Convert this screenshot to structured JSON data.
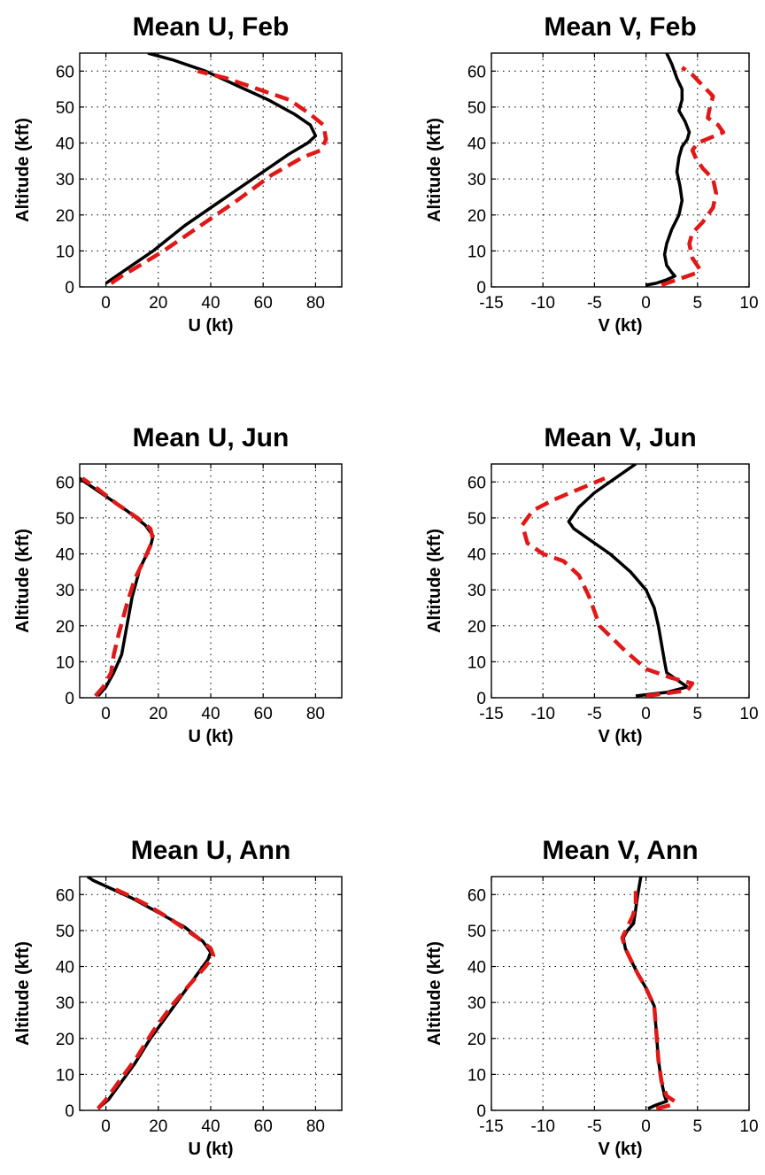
{
  "colors": {
    "series_solid": "#000000",
    "series_dashed": "#e01818",
    "background": "#ffffff"
  },
  "chart_data": [
    {
      "type": "line",
      "title": "Mean U, Feb",
      "xlabel": "U (kt)",
      "ylabel": "Altitude (kft)",
      "xlim": [
        -10,
        90
      ],
      "ylim": [
        0,
        65
      ],
      "xticks": [
        0,
        20,
        40,
        60,
        80
      ],
      "yticks": [
        0,
        10,
        20,
        30,
        40,
        50,
        60
      ],
      "grid": true,
      "series": [
        {
          "style": "solid",
          "color": "#000000",
          "points": [
            [
              0,
              1
            ],
            [
              4,
              3
            ],
            [
              10,
              6
            ],
            [
              18,
              10
            ],
            [
              30,
              17
            ],
            [
              44,
              24
            ],
            [
              58,
              31
            ],
            [
              70,
              37
            ],
            [
              77,
              40
            ],
            [
              80,
              42
            ],
            [
              78,
              45
            ],
            [
              72,
              48
            ],
            [
              62,
              52
            ],
            [
              50,
              56
            ],
            [
              38,
              60
            ],
            [
              26,
              63
            ],
            [
              16,
              65
            ]
          ]
        },
        {
          "style": "dashed",
          "color": "#e01818",
          "points": [
            [
              2,
              1
            ],
            [
              6,
              3
            ],
            [
              13,
              6
            ],
            [
              22,
              10
            ],
            [
              36,
              17
            ],
            [
              50,
              24
            ],
            [
              63,
              31
            ],
            [
              75,
              36
            ],
            [
              82,
              38
            ],
            [
              84,
              41
            ],
            [
              83,
              45
            ],
            [
              78,
              48
            ],
            [
              70,
              52
            ],
            [
              58,
              55
            ],
            [
              46,
              58
            ],
            [
              35,
              60
            ]
          ]
        }
      ]
    },
    {
      "type": "line",
      "title": "Mean V, Feb",
      "xlabel": "V (kt)",
      "ylabel": "Altitude (kft)",
      "xlim": [
        -15,
        10
      ],
      "ylim": [
        0,
        65
      ],
      "xticks": [
        -15,
        -10,
        -5,
        0,
        5,
        10
      ],
      "yticks": [
        0,
        10,
        20,
        30,
        40,
        50,
        60
      ],
      "grid": true,
      "series": [
        {
          "style": "solid",
          "color": "#000000",
          "points": [
            [
              0,
              0.5
            ],
            [
              1,
              1
            ],
            [
              2,
              2
            ],
            [
              2.8,
              3
            ],
            [
              2.5,
              4
            ],
            [
              2,
              6
            ],
            [
              1.8,
              9
            ],
            [
              2,
              12
            ],
            [
              2.5,
              16
            ],
            [
              3.2,
              20
            ],
            [
              3.5,
              24
            ],
            [
              3.3,
              28
            ],
            [
              3,
              32
            ],
            [
              3.2,
              36
            ],
            [
              3.5,
              39
            ],
            [
              4,
              41
            ],
            [
              4.2,
              43
            ],
            [
              3.8,
              46
            ],
            [
              3.2,
              49
            ],
            [
              3.5,
              52
            ],
            [
              3.5,
              55
            ],
            [
              3,
              58
            ],
            [
              2.5,
              62
            ],
            [
              2,
              65
            ]
          ]
        },
        {
          "style": "dashed",
          "color": "#e01818",
          "points": [
            [
              1.5,
              0.5
            ],
            [
              2,
              1
            ],
            [
              3,
              2
            ],
            [
              5,
              4
            ],
            [
              5.2,
              5
            ],
            [
              4.5,
              8
            ],
            [
              4.2,
              12
            ],
            [
              4.5,
              15
            ],
            [
              5.5,
              18
            ],
            [
              6.5,
              22
            ],
            [
              6.8,
              26
            ],
            [
              6.5,
              30
            ],
            [
              5.5,
              33
            ],
            [
              4.8,
              36
            ],
            [
              4.5,
              38
            ],
            [
              5,
              40
            ],
            [
              7.5,
              43
            ],
            [
              7,
              45
            ],
            [
              6,
              47
            ],
            [
              6.2,
              50
            ],
            [
              6.5,
              53
            ],
            [
              5.5,
              56
            ],
            [
              4.5,
              59
            ],
            [
              3.5,
              61
            ]
          ]
        }
      ]
    },
    {
      "type": "line",
      "title": "Mean U, Jun",
      "xlabel": "U (kt)",
      "ylabel": "Altitude (kft)",
      "xlim": [
        -10,
        90
      ],
      "ylim": [
        0,
        65
      ],
      "xticks": [
        0,
        20,
        40,
        60,
        80
      ],
      "yticks": [
        0,
        10,
        20,
        30,
        40,
        50,
        60
      ],
      "grid": true,
      "series": [
        {
          "style": "solid",
          "color": "#000000",
          "points": [
            [
              -3,
              0.5
            ],
            [
              0,
              3
            ],
            [
              3,
              7
            ],
            [
              6,
              12
            ],
            [
              8,
              20
            ],
            [
              10,
              28
            ],
            [
              13,
              36
            ],
            [
              17,
              42
            ],
            [
              18,
              45
            ],
            [
              15,
              48
            ],
            [
              8,
              52
            ],
            [
              0,
              56
            ],
            [
              -6,
              59
            ],
            [
              -10,
              61
            ]
          ]
        },
        {
          "style": "dashed",
          "color": "#e01818",
          "points": [
            [
              -4,
              0.5
            ],
            [
              -1,
              3
            ],
            [
              2,
              7
            ],
            [
              3,
              12
            ],
            [
              5,
              18
            ],
            [
              8,
              26
            ],
            [
              11,
              33
            ],
            [
              15,
              39
            ],
            [
              18,
              44
            ],
            [
              17,
              47
            ],
            [
              12,
              50
            ],
            [
              4,
              54
            ],
            [
              -3,
              58
            ],
            [
              -9,
              61
            ]
          ]
        }
      ]
    },
    {
      "type": "line",
      "title": "Mean V, Jun",
      "xlabel": "V (kt)",
      "ylabel": "Altitude (kft)",
      "xlim": [
        -15,
        10
      ],
      "ylim": [
        0,
        65
      ],
      "xticks": [
        -15,
        -10,
        -5,
        0,
        5,
        10
      ],
      "yticks": [
        0,
        10,
        20,
        30,
        40,
        50,
        60
      ],
      "grid": true,
      "series": [
        {
          "style": "solid",
          "color": "#000000",
          "points": [
            [
              -1,
              0.5
            ],
            [
              2,
              1.5
            ],
            [
              4,
              3
            ],
            [
              3,
              5
            ],
            [
              2,
              7
            ],
            [
              1.8,
              10
            ],
            [
              1.5,
              15
            ],
            [
              1.2,
              20
            ],
            [
              0.8,
              25
            ],
            [
              0,
              30
            ],
            [
              -1.5,
              35
            ],
            [
              -3.5,
              40
            ],
            [
              -5.5,
              44
            ],
            [
              -7,
              47
            ],
            [
              -7.5,
              49
            ],
            [
              -6.5,
              53
            ],
            [
              -5,
              57
            ],
            [
              -3,
              61
            ],
            [
              -1.5,
              64
            ],
            [
              -1,
              65
            ]
          ]
        },
        {
          "style": "dashed",
          "color": "#e01818",
          "points": [
            [
              0,
              0.5
            ],
            [
              4,
              2
            ],
            [
              4.5,
              4
            ],
            [
              2.5,
              5.5
            ],
            [
              0,
              8
            ],
            [
              -2,
              13
            ],
            [
              -4.5,
              20
            ],
            [
              -5.5,
              28
            ],
            [
              -6.5,
              34
            ],
            [
              -8,
              38
            ],
            [
              -10,
              40
            ],
            [
              -11.5,
              43
            ],
            [
              -12,
              48
            ],
            [
              -11,
              52
            ],
            [
              -9,
              55
            ],
            [
              -6.5,
              58
            ],
            [
              -4,
              61
            ]
          ]
        }
      ]
    },
    {
      "type": "line",
      "title": "Mean U, Ann",
      "xlabel": "U (kt)",
      "ylabel": "Altitude (kft)",
      "xlim": [
        -10,
        90
      ],
      "ylim": [
        0,
        65
      ],
      "xticks": [
        0,
        20,
        40,
        60,
        80
      ],
      "yticks": [
        0,
        10,
        20,
        30,
        40,
        50,
        60
      ],
      "grid": true,
      "series": [
        {
          "style": "solid",
          "color": "#000000",
          "points": [
            [
              -3,
              0.5
            ],
            [
              1,
              3
            ],
            [
              5,
              7
            ],
            [
              11,
              13
            ],
            [
              17,
              20
            ],
            [
              23,
              26
            ],
            [
              29,
              32
            ],
            [
              35,
              38
            ],
            [
              39,
              42
            ],
            [
              40,
              44
            ],
            [
              37,
              47
            ],
            [
              30,
              51
            ],
            [
              20,
              55
            ],
            [
              10,
              59
            ],
            [
              1,
              62
            ],
            [
              -5,
              64
            ],
            [
              -7,
              65
            ]
          ]
        },
        {
          "style": "dashed",
          "color": "#e01818",
          "points": [
            [
              -3,
              0.5
            ],
            [
              0,
              3
            ],
            [
              5,
              8
            ],
            [
              12,
              15
            ],
            [
              18,
              22
            ],
            [
              25,
              29
            ],
            [
              32,
              35
            ],
            [
              38,
              40
            ],
            [
              41,
              43
            ],
            [
              40,
              45
            ],
            [
              35,
              48
            ],
            [
              25,
              53
            ],
            [
              16,
              57
            ],
            [
              8,
              60
            ],
            [
              2,
              62
            ]
          ]
        }
      ]
    },
    {
      "type": "line",
      "title": "Mean V, Ann",
      "xlabel": "V (kt)",
      "ylabel": "Altitude (kft)",
      "xlim": [
        -15,
        10
      ],
      "ylim": [
        0,
        65
      ],
      "xticks": [
        -15,
        -10,
        -5,
        0,
        5,
        10
      ],
      "yticks": [
        0,
        10,
        20,
        30,
        40,
        50,
        60
      ],
      "grid": true,
      "series": [
        {
          "style": "solid",
          "color": "#000000",
          "points": [
            [
              0.2,
              0.5
            ],
            [
              1,
              1.5
            ],
            [
              2,
              2.5
            ],
            [
              1.8,
              4
            ],
            [
              1.5,
              8
            ],
            [
              1.2,
              14
            ],
            [
              1,
              22
            ],
            [
              0.8,
              29
            ],
            [
              0,
              34
            ],
            [
              -0.8,
              38
            ],
            [
              -1.5,
              42
            ],
            [
              -2,
              45
            ],
            [
              -2.2,
              48
            ],
            [
              -1.8,
              50
            ],
            [
              -1.2,
              52
            ],
            [
              -1,
              56
            ],
            [
              -0.8,
              60
            ],
            [
              -0.5,
              65
            ]
          ]
        },
        {
          "style": "dashed",
          "color": "#e01818",
          "points": [
            [
              1,
              0.5
            ],
            [
              2.5,
              1.5
            ],
            [
              2.8,
              2.5
            ],
            [
              2,
              4
            ],
            [
              1.5,
              8
            ],
            [
              1.2,
              14
            ],
            [
              1,
              22
            ],
            [
              0.8,
              29
            ],
            [
              0,
              34
            ],
            [
              -0.8,
              38
            ],
            [
              -1.5,
              42
            ],
            [
              -2,
              45
            ],
            [
              -2.3,
              48
            ],
            [
              -1.8,
              51
            ],
            [
              -1.3,
              54
            ],
            [
              -1,
              57
            ],
            [
              -1,
              61
            ]
          ]
        }
      ]
    }
  ]
}
